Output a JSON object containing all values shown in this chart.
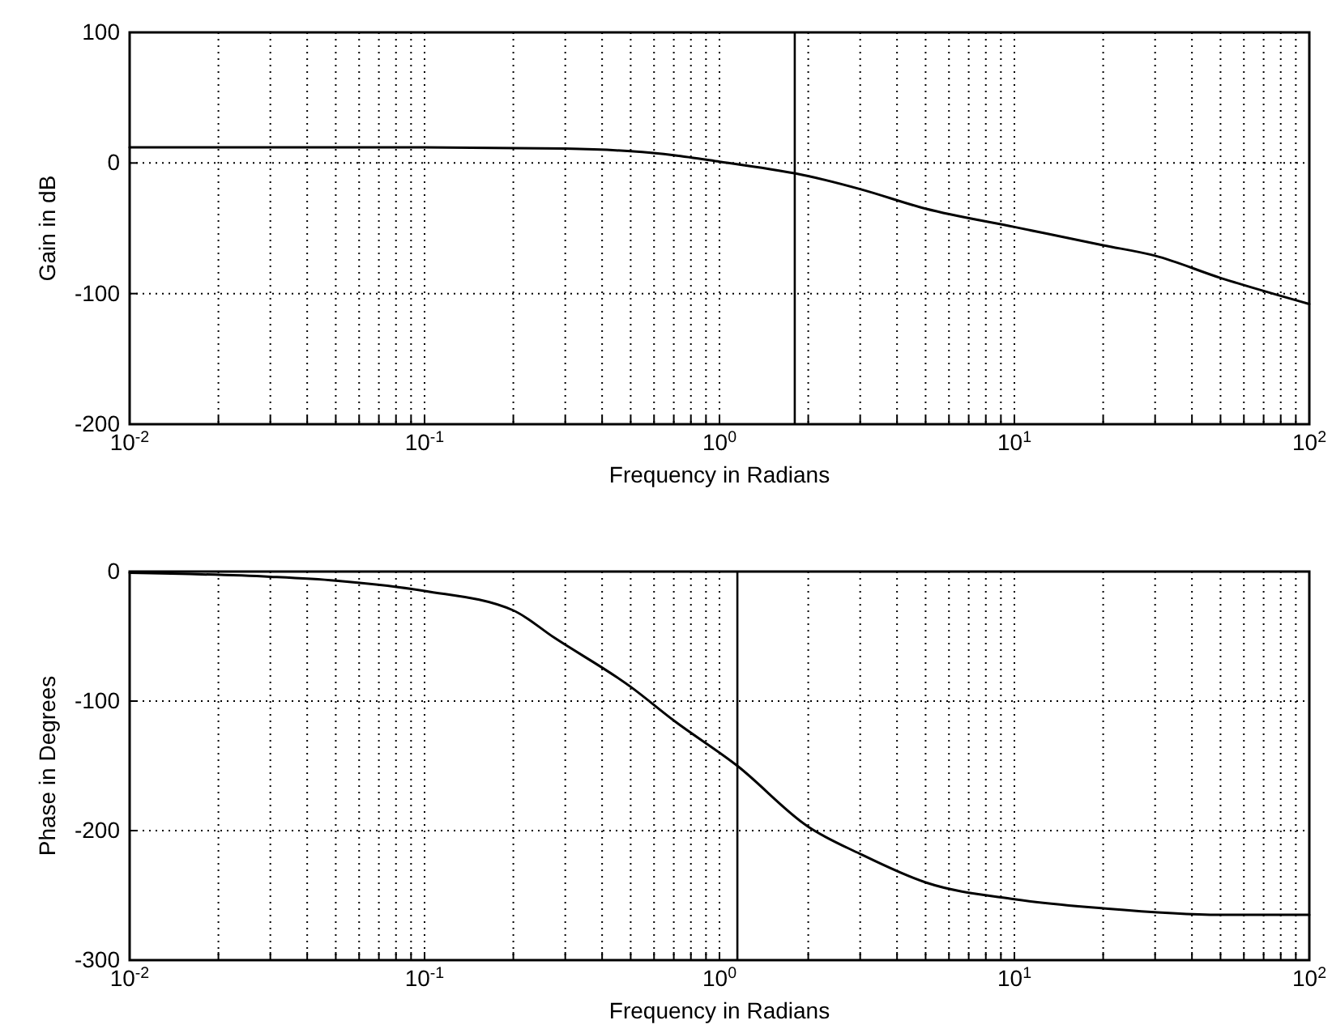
{
  "chart_data": [
    {
      "type": "line",
      "xlabel": "Frequency in Radians",
      "ylabel": "Gain in dB",
      "log": "x",
      "grid": true,
      "marker": "none",
      "line_style": "solid",
      "xlim": [
        0.01,
        100
      ],
      "ylim": [
        -200,
        100
      ],
      "yticks": [
        -200,
        -100,
        0,
        100
      ],
      "xticks": [
        {
          "value": 0.01,
          "label": "10$^{-2}$"
        },
        {
          "value": 0.02,
          "label": null
        },
        {
          "value": 0.03,
          "label": null
        },
        {
          "value": 0.04,
          "label": null
        },
        {
          "value": 0.05,
          "label": null
        },
        {
          "value": 0.06,
          "label": null
        },
        {
          "value": 0.07,
          "label": null
        },
        {
          "value": 0.08,
          "label": null
        },
        {
          "value": 0.09,
          "label": null
        },
        {
          "value": 0.1,
          "label": "10$^{-1}$"
        },
        {
          "value": 0.2,
          "label": null
        },
        {
          "value": 0.3,
          "label": null
        },
        {
          "value": 0.4,
          "label": null
        },
        {
          "value": 0.5,
          "label": null
        },
        {
          "value": 0.6,
          "label": null
        },
        {
          "value": 0.7,
          "label": null
        },
        {
          "value": 0.8,
          "label": null
        },
        {
          "value": 0.9,
          "label": null
        },
        {
          "value": 1,
          "label": "10$^{0}$"
        },
        {
          "value": 2,
          "label": null
        },
        {
          "value": 3,
          "label": null
        },
        {
          "value": 4,
          "label": null
        },
        {
          "value": 5,
          "label": null
        },
        {
          "value": 6,
          "label": null
        },
        {
          "value": 7,
          "label": null
        },
        {
          "value": 8,
          "label": null
        },
        {
          "value": 9,
          "label": null
        },
        {
          "value": 10,
          "label": "10$^{1}$"
        },
        {
          "value": 20,
          "label": null
        },
        {
          "value": 30,
          "label": null
        },
        {
          "value": 40,
          "label": null
        },
        {
          "value": 50,
          "label": null
        },
        {
          "value": 60,
          "label": null
        },
        {
          "value": 70,
          "label": null
        },
        {
          "value": 80,
          "label": null
        },
        {
          "value": 90,
          "label": null
        },
        {
          "value": 100,
          "label": "10$^{2}$"
        }
      ],
      "ref_lines": [
        {
          "axis": "x",
          "value": 1.8,
          "color": "#000000",
          "line_style": "solid"
        }
      ],
      "series": [
        {
          "color": "#000000",
          "x": [
            0.01,
            0.1,
            0.3,
            0.5,
            0.7,
            1,
            2,
            3,
            5,
            10,
            20,
            30,
            50,
            100
          ],
          "values": [
            12,
            12,
            11,
            9,
            6,
            1,
            -10,
            -20,
            -35,
            -49,
            -63,
            -71,
            -88,
            -108
          ]
        }
      ]
    },
    {
      "type": "line",
      "xlabel": "Frequency in Radians",
      "ylabel": "Phase in Degrees",
      "log": "x",
      "grid": true,
      "marker": "none",
      "line_style": "solid",
      "xlim": [
        0.01,
        100
      ],
      "ylim": [
        -300,
        0
      ],
      "yticks": [
        -300,
        -200,
        -100,
        0
      ],
      "xticks": [
        {
          "value": 0.01,
          "label": "10$^{-2}$"
        },
        {
          "value": 0.02,
          "label": null
        },
        {
          "value": 0.03,
          "label": null
        },
        {
          "value": 0.04,
          "label": null
        },
        {
          "value": 0.05,
          "label": null
        },
        {
          "value": 0.06,
          "label": null
        },
        {
          "value": 0.07,
          "label": null
        },
        {
          "value": 0.08,
          "label": null
        },
        {
          "value": 0.09,
          "label": null
        },
        {
          "value": 0.1,
          "label": "10$^{-1}$"
        },
        {
          "value": 0.2,
          "label": null
        },
        {
          "value": 0.3,
          "label": null
        },
        {
          "value": 0.4,
          "label": null
        },
        {
          "value": 0.5,
          "label": null
        },
        {
          "value": 0.6,
          "label": null
        },
        {
          "value": 0.7,
          "label": null
        },
        {
          "value": 0.8,
          "label": null
        },
        {
          "value": 0.9,
          "label": null
        },
        {
          "value": 1,
          "label": "10$^{0}$"
        },
        {
          "value": 2,
          "label": null
        },
        {
          "value": 3,
          "label": null
        },
        {
          "value": 4,
          "label": null
        },
        {
          "value": 5,
          "label": null
        },
        {
          "value": 6,
          "label": null
        },
        {
          "value": 7,
          "label": null
        },
        {
          "value": 8,
          "label": null
        },
        {
          "value": 9,
          "label": null
        },
        {
          "value": 10,
          "label": "10$^{1}$"
        },
        {
          "value": 20,
          "label": null
        },
        {
          "value": 30,
          "label": null
        },
        {
          "value": 40,
          "label": null
        },
        {
          "value": 50,
          "label": null
        },
        {
          "value": 60,
          "label": null
        },
        {
          "value": 70,
          "label": null
        },
        {
          "value": 80,
          "label": null
        },
        {
          "value": 90,
          "label": null
        },
        {
          "value": 100,
          "label": "10$^{2}$"
        }
      ],
      "ref_lines": [
        {
          "axis": "x",
          "value": 1.15,
          "color": "#000000",
          "line_style": "solid"
        }
      ],
      "series": [
        {
          "color": "#000000",
          "x": [
            0.01,
            0.03,
            0.05,
            0.1,
            0.2,
            0.275,
            0.5,
            0.7,
            1.15,
            2,
            3,
            5,
            10,
            20,
            50,
            100
          ],
          "values": [
            -1,
            -4,
            -7,
            -15,
            -30,
            -51,
            -89,
            -115,
            -150,
            -197,
            -218,
            -240,
            -253,
            -260,
            -265,
            -265
          ]
        }
      ]
    }
  ]
}
